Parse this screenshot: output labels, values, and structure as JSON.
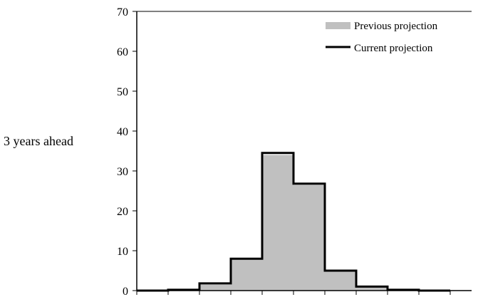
{
  "chart_data": {
    "type": "bar",
    "ylabel": "3 years ahead",
    "ylim": [
      0,
      70
    ],
    "yticks": [
      0,
      10,
      20,
      30,
      40,
      50,
      60,
      70
    ],
    "bins": 10,
    "series": [
      {
        "name": "Previous projection",
        "style": "filled",
        "color": "#c0c0c0",
        "values": [
          0,
          0.2,
          1.5,
          8,
          34,
          26.5,
          5,
          1,
          0.2,
          0
        ]
      },
      {
        "name": "Current projection",
        "style": "step-outline",
        "color": "#000000",
        "values": [
          0,
          0.2,
          1.8,
          8,
          34.5,
          26.8,
          5,
          1,
          0.2,
          0
        ]
      }
    ],
    "legend": "top-right",
    "grid": false
  }
}
